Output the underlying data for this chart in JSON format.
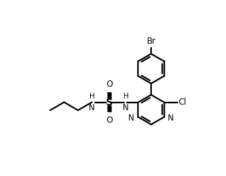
{
  "bg_color": "#ffffff",
  "line_color": "#000000",
  "line_width": 1.6,
  "font_size": 8.5,
  "figsize": [
    3.26,
    2.54
  ],
  "dpi": 100,
  "xlim": [
    0,
    9.5
  ],
  "ylim": [
    0,
    8.5
  ]
}
